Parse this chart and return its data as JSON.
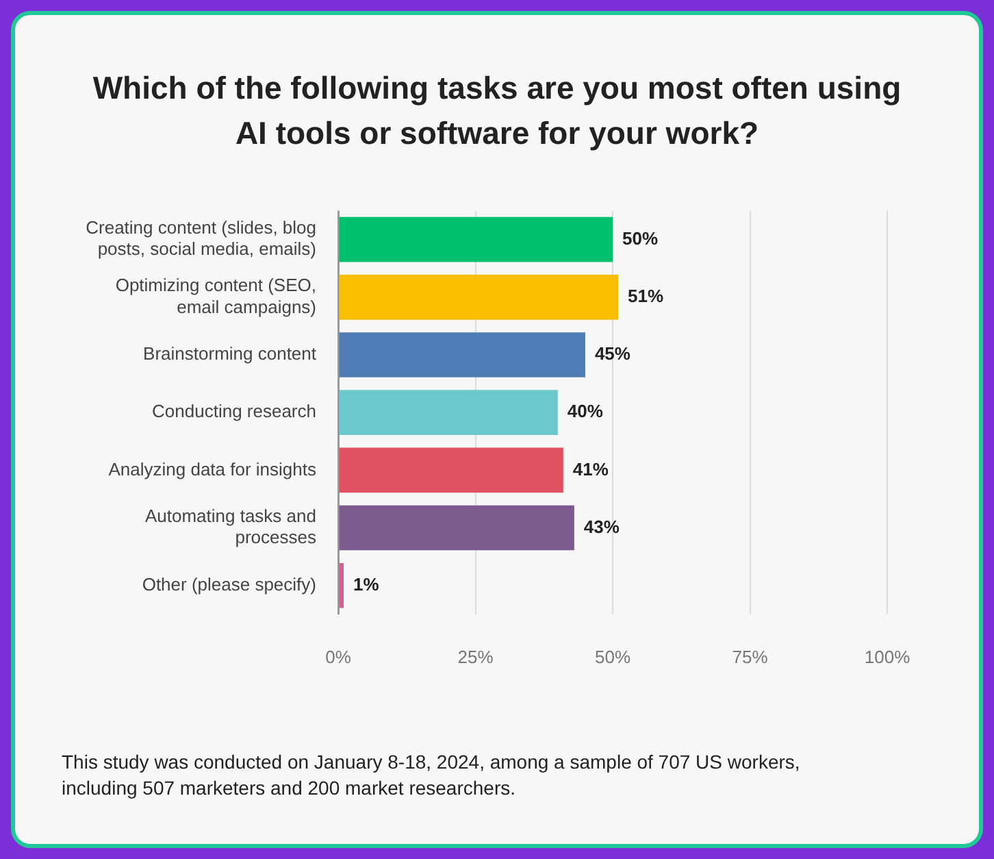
{
  "chart_data": {
    "type": "bar",
    "orientation": "horizontal",
    "title": "Which of the following tasks are you most often using AI tools or software for your work?",
    "categories": [
      "Creating content (slides, blog posts, social media, emails)",
      "Optimizing content (SEO, email campaigns)",
      "Brainstorming content",
      "Conducting research",
      "Analyzing data for insights",
      "Automating tasks and processes",
      "Other (please specify)"
    ],
    "values": [
      50,
      51,
      45,
      40,
      41,
      43,
      1
    ],
    "colors": [
      "#00bf6f",
      "#f9be00",
      "#507cb6",
      "#6bc8cd",
      "#e05263",
      "#7d5b8f",
      "#d25f90"
    ],
    "value_labels": [
      "50%",
      "51%",
      "45%",
      "40%",
      "41%",
      "43%",
      "1%"
    ],
    "xlim": [
      0,
      100
    ],
    "xticks": [
      {
        "value": 0,
        "label": "0%"
      },
      {
        "value": 25,
        "label": "25%"
      },
      {
        "value": 50,
        "label": "50%"
      },
      {
        "value": 75,
        "label": "75%"
      },
      {
        "value": 100,
        "label": "100%"
      }
    ],
    "grid": "x",
    "legend": false,
    "annotations": [
      "This study was conducted on January 8-18, 2024, among a sample of 707 US workers, including 507 marketers and 200 market researchers."
    ]
  }
}
